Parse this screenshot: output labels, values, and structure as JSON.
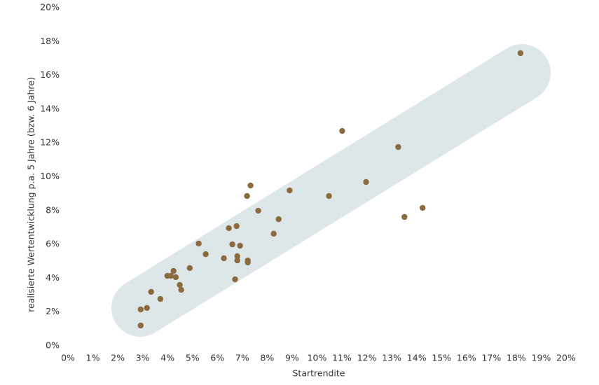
{
  "chart_data": {
    "type": "scatter",
    "xlabel": "Startrendite",
    "ylabel": "realisierte Wertentwicklung p.a. 5 Jahre (bzw. 6 Jahre)",
    "color": "#8b6a3e",
    "grid": false,
    "xlim": [
      0,
      20
    ],
    "ylim": [
      0,
      20
    ],
    "xticks": [
      {
        "value": 0,
        "label": "0%"
      },
      {
        "value": 1,
        "label": "1%"
      },
      {
        "value": 2,
        "label": "2%"
      },
      {
        "value": 3,
        "label": "3%"
      },
      {
        "value": 4,
        "label": "4%"
      },
      {
        "value": 5,
        "label": "5%"
      },
      {
        "value": 6,
        "label": "6%"
      },
      {
        "value": 7,
        "label": "7%"
      },
      {
        "value": 8,
        "label": "8%"
      },
      {
        "value": 9,
        "label": "9%"
      },
      {
        "value": 10,
        "label": "10%"
      },
      {
        "value": 11,
        "label": "11%"
      },
      {
        "value": 12,
        "label": "12%"
      },
      {
        "value": 13,
        "label": "13%"
      },
      {
        "value": 14,
        "label": "14%"
      },
      {
        "value": 15,
        "label": "15%"
      },
      {
        "value": 16,
        "label": "16%"
      },
      {
        "value": 17,
        "label": "17%"
      },
      {
        "value": 18,
        "label": "18%"
      },
      {
        "value": 19,
        "label": "19%"
      },
      {
        "value": 20,
        "label": "20%"
      }
    ],
    "yticks": [
      {
        "value": 0,
        "label": "0%"
      },
      {
        "value": 2,
        "label": "2%"
      },
      {
        "value": 4,
        "label": "4%"
      },
      {
        "value": 6,
        "label": "6%"
      },
      {
        "value": 8,
        "label": "8%"
      },
      {
        "value": 10,
        "label": "10%"
      },
      {
        "value": 12,
        "label": "12%"
      },
      {
        "value": 14,
        "label": "14%"
      },
      {
        "value": 16,
        "label": "16%"
      },
      {
        "value": 18,
        "label": "18%"
      },
      {
        "value": 20,
        "label": "20%"
      }
    ],
    "x": [
      18.17,
      11.01,
      13.26,
      7.33,
      8.9,
      7.19,
      10.48,
      11.97,
      7.64,
      14.24,
      13.51,
      8.46,
      6.77,
      6.46,
      8.26,
      5.25,
      6.6,
      6.91,
      5.53,
      6.26,
      6.8,
      6.8,
      7.22,
      7.22,
      4.89,
      4.24,
      3.99,
      4.13,
      4.33,
      4.49,
      4.55,
      6.71,
      3.34,
      3.71,
      2.92,
      3.17,
      2.92
    ],
    "y": [
      17.31,
      12.71,
      11.76,
      9.48,
      9.19,
      8.86,
      8.86,
      9.69,
      7.99,
      8.16,
      7.62,
      7.49,
      7.08,
      6.96,
      6.63,
      6.05,
      6.0,
      5.92,
      5.42,
      5.18,
      5.3,
      5.05,
      5.05,
      4.93,
      4.6,
      4.43,
      4.14,
      4.14,
      4.06,
      3.6,
      3.31,
      3.93,
      3.19,
      2.77,
      2.15,
      2.24,
      1.2
    ]
  }
}
